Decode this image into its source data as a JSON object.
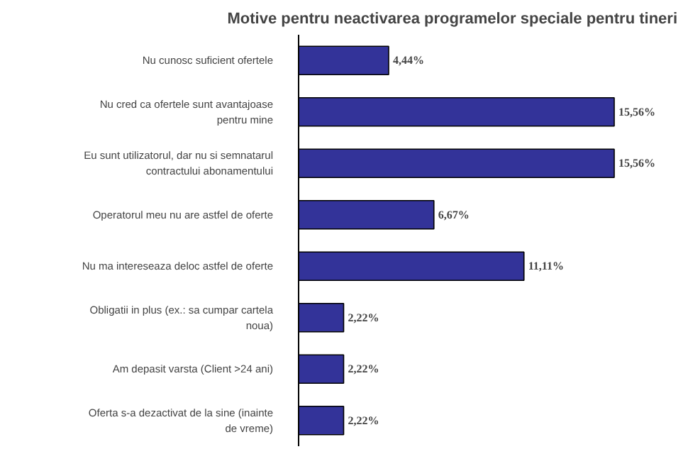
{
  "chart_data": {
    "type": "bar",
    "orientation": "horizontal",
    "title": "Motive pentru neactivarea programelor speciale pentru tineri",
    "categories": [
      "Nu cunosc suficient ofertele",
      "Nu cred ca ofertele sunt avantajoase pentru mine",
      "Eu sunt utilizatorul, dar nu si semnatarul contractului abonamentului",
      "Operatorul meu nu are astfel de oferte",
      "Nu ma intereseaza deloc astfel de oferte",
      "Obligatii in plus (ex.: sa cumpar cartela noua)",
      "Am depasit varsta (Client >24 ani)",
      "Oferta s-a dezactivat de la sine (inainte de vreme)"
    ],
    "values": [
      4.44,
      15.56,
      15.56,
      6.67,
      11.11,
      2.22,
      2.22,
      2.22
    ],
    "value_labels": [
      "4,44%",
      "15,56%",
      "15,56%",
      "6,67%",
      "11,11%",
      "2,22%",
      "2,22%",
      "2,22%"
    ],
    "color": "#333399",
    "grid": false
  }
}
